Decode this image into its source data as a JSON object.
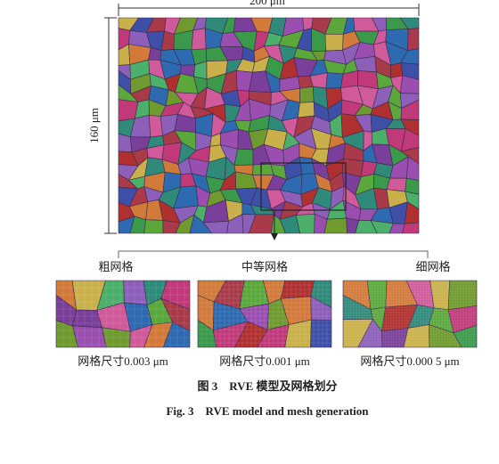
{
  "figure": {
    "width_label": "200 μm",
    "height_label": "160 μm",
    "panels": [
      {
        "label": "粗网格",
        "caption": "网格尺寸0.003 μm"
      },
      {
        "label": "中等网格",
        "caption": "网格尺寸0.001 μm"
      },
      {
        "label": "细网格",
        "caption": "网格尺寸0.000 5 μm"
      }
    ],
    "caption_cn": "图 3　RVE 模型及网格划分",
    "caption_en": "Fig. 3　RVE model and mesh generation"
  }
}
